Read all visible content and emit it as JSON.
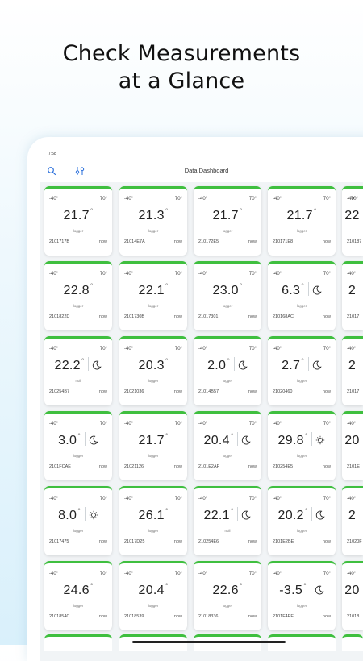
{
  "headline": {
    "line1": "Check Measurements",
    "line2": "at a Glance"
  },
  "status": {
    "time": "7:58"
  },
  "header": {
    "title": "Data Dashboard",
    "search_icon": "search-icon",
    "filter_icon": "filter-sliders-icon"
  },
  "colors": {
    "accent": "#3fbf3f",
    "icon": "#2a6fdb"
  },
  "tiles": [
    {
      "min": "-40°",
      "max": "70°",
      "value": "21.7",
      "unit": "°",
      "sub": "logger",
      "id": "2101717B",
      "time": "now",
      "weather": ""
    },
    {
      "min": "-40°",
      "max": "70°",
      "value": "21.3",
      "unit": "°",
      "sub": "logger",
      "id": "21014E7A",
      "time": "now",
      "weather": ""
    },
    {
      "min": "-40°",
      "max": "70°",
      "value": "21.7",
      "unit": "°",
      "sub": "logger",
      "id": "210172E5",
      "time": "now",
      "weather": ""
    },
    {
      "min": "-40°",
      "max": "70°",
      "value": "21.7",
      "unit": "°",
      "sub": "logger",
      "id": "210171E8",
      "time": "now",
      "weather": ""
    },
    {
      "min": "-40°",
      "max": "70°",
      "value": "22",
      "unit": "",
      "sub": "",
      "id": "210187",
      "time": "",
      "weather": ""
    },
    {
      "min": "-40°",
      "max": "70°",
      "value": "22.8",
      "unit": "°",
      "sub": "logger",
      "id": "2101822D",
      "time": "now",
      "weather": ""
    },
    {
      "min": "-40°",
      "max": "70°",
      "value": "22.1",
      "unit": "°",
      "sub": "logger",
      "id": "2101730B",
      "time": "now",
      "weather": ""
    },
    {
      "min": "-40°",
      "max": "70°",
      "value": "23.0",
      "unit": "°",
      "sub": "logger",
      "id": "21017301",
      "time": "now",
      "weather": ""
    },
    {
      "min": "-40°",
      "max": "70°",
      "value": "6.3",
      "unit": "°",
      "sub": "logger",
      "id": "210168AC",
      "time": "now",
      "weather": "moon-icon"
    },
    {
      "min": "-40°",
      "max": "",
      "value": "2",
      "unit": "",
      "sub": "",
      "id": "21017",
      "time": "",
      "weather": ""
    },
    {
      "min": "-40°",
      "max": "70°",
      "value": "22.2",
      "unit": "°",
      "sub": "null",
      "id": "210254B7",
      "time": "now",
      "weather": "moon-icon"
    },
    {
      "min": "-40°",
      "max": "70°",
      "value": "20.3",
      "unit": "°",
      "sub": "logger",
      "id": "21021036",
      "time": "now",
      "weather": ""
    },
    {
      "min": "-40°",
      "max": "70°",
      "value": "2.0",
      "unit": "°",
      "sub": "logger",
      "id": "21014B57",
      "time": "now",
      "weather": "moon-icon"
    },
    {
      "min": "-40°",
      "max": "70°",
      "value": "2.7",
      "unit": "°",
      "sub": "logger",
      "id": "21020460",
      "time": "now",
      "weather": "moon-icon"
    },
    {
      "min": "-40°",
      "max": "",
      "value": "2",
      "unit": "",
      "sub": "",
      "id": "21017",
      "time": "",
      "weather": ""
    },
    {
      "min": "-40°",
      "max": "70°",
      "value": "3.0",
      "unit": "°",
      "sub": "logger",
      "id": "2101FCAE",
      "time": "now",
      "weather": "moon-icon"
    },
    {
      "min": "-40°",
      "max": "70°",
      "value": "21.7",
      "unit": "°",
      "sub": "logger",
      "id": "21021126",
      "time": "now",
      "weather": ""
    },
    {
      "min": "-40°",
      "max": "70°",
      "value": "20.4",
      "unit": "°",
      "sub": "logger",
      "id": "2101E2AF",
      "time": "now",
      "weather": "moon-icon"
    },
    {
      "min": "-40°",
      "max": "70°",
      "value": "29.8",
      "unit": "°",
      "sub": "logger",
      "id": "210254E5",
      "time": "now",
      "weather": "sun-icon"
    },
    {
      "min": "-40°",
      "max": "",
      "value": "20",
      "unit": "",
      "sub": "",
      "id": "2101E",
      "time": "",
      "weather": ""
    },
    {
      "min": "-40°",
      "max": "70°",
      "value": "8.0",
      "unit": "°",
      "sub": "logger",
      "id": "21017475",
      "time": "now",
      "weather": "sun-icon"
    },
    {
      "min": "-40°",
      "max": "70°",
      "value": "26.1",
      "unit": "°",
      "sub": "logger",
      "id": "21017D25",
      "time": "now",
      "weather": ""
    },
    {
      "min": "-40°",
      "max": "70°",
      "value": "22.1",
      "unit": "°",
      "sub": "null",
      "id": "210254E6",
      "time": "now",
      "weather": "moon-icon"
    },
    {
      "min": "-40°",
      "max": "70°",
      "value": "20.2",
      "unit": "°",
      "sub": "logger",
      "id": "2101E2BE",
      "time": "now",
      "weather": "moon-icon"
    },
    {
      "min": "-40°",
      "max": "",
      "value": "2",
      "unit": "",
      "sub": "",
      "id": "21020F",
      "time": "",
      "weather": ""
    },
    {
      "min": "-40°",
      "max": "70°",
      "value": "24.6",
      "unit": "°",
      "sub": "logger",
      "id": "2101854C",
      "time": "now",
      "weather": ""
    },
    {
      "min": "-40°",
      "max": "70°",
      "value": "20.4",
      "unit": "°",
      "sub": "logger",
      "id": "21018539",
      "time": "now",
      "weather": ""
    },
    {
      "min": "-40°",
      "max": "70°",
      "value": "22.6",
      "unit": "°",
      "sub": "logger",
      "id": "21018336",
      "time": "now",
      "weather": ""
    },
    {
      "min": "-40°",
      "max": "70°",
      "value": "-3.5",
      "unit": "°",
      "sub": "logger",
      "id": "2101F4EE",
      "time": "now",
      "weather": "moon-icon"
    },
    {
      "min": "-40°",
      "max": "",
      "value": "20",
      "unit": "",
      "sub": "",
      "id": "21018",
      "time": "",
      "weather": ""
    }
  ]
}
